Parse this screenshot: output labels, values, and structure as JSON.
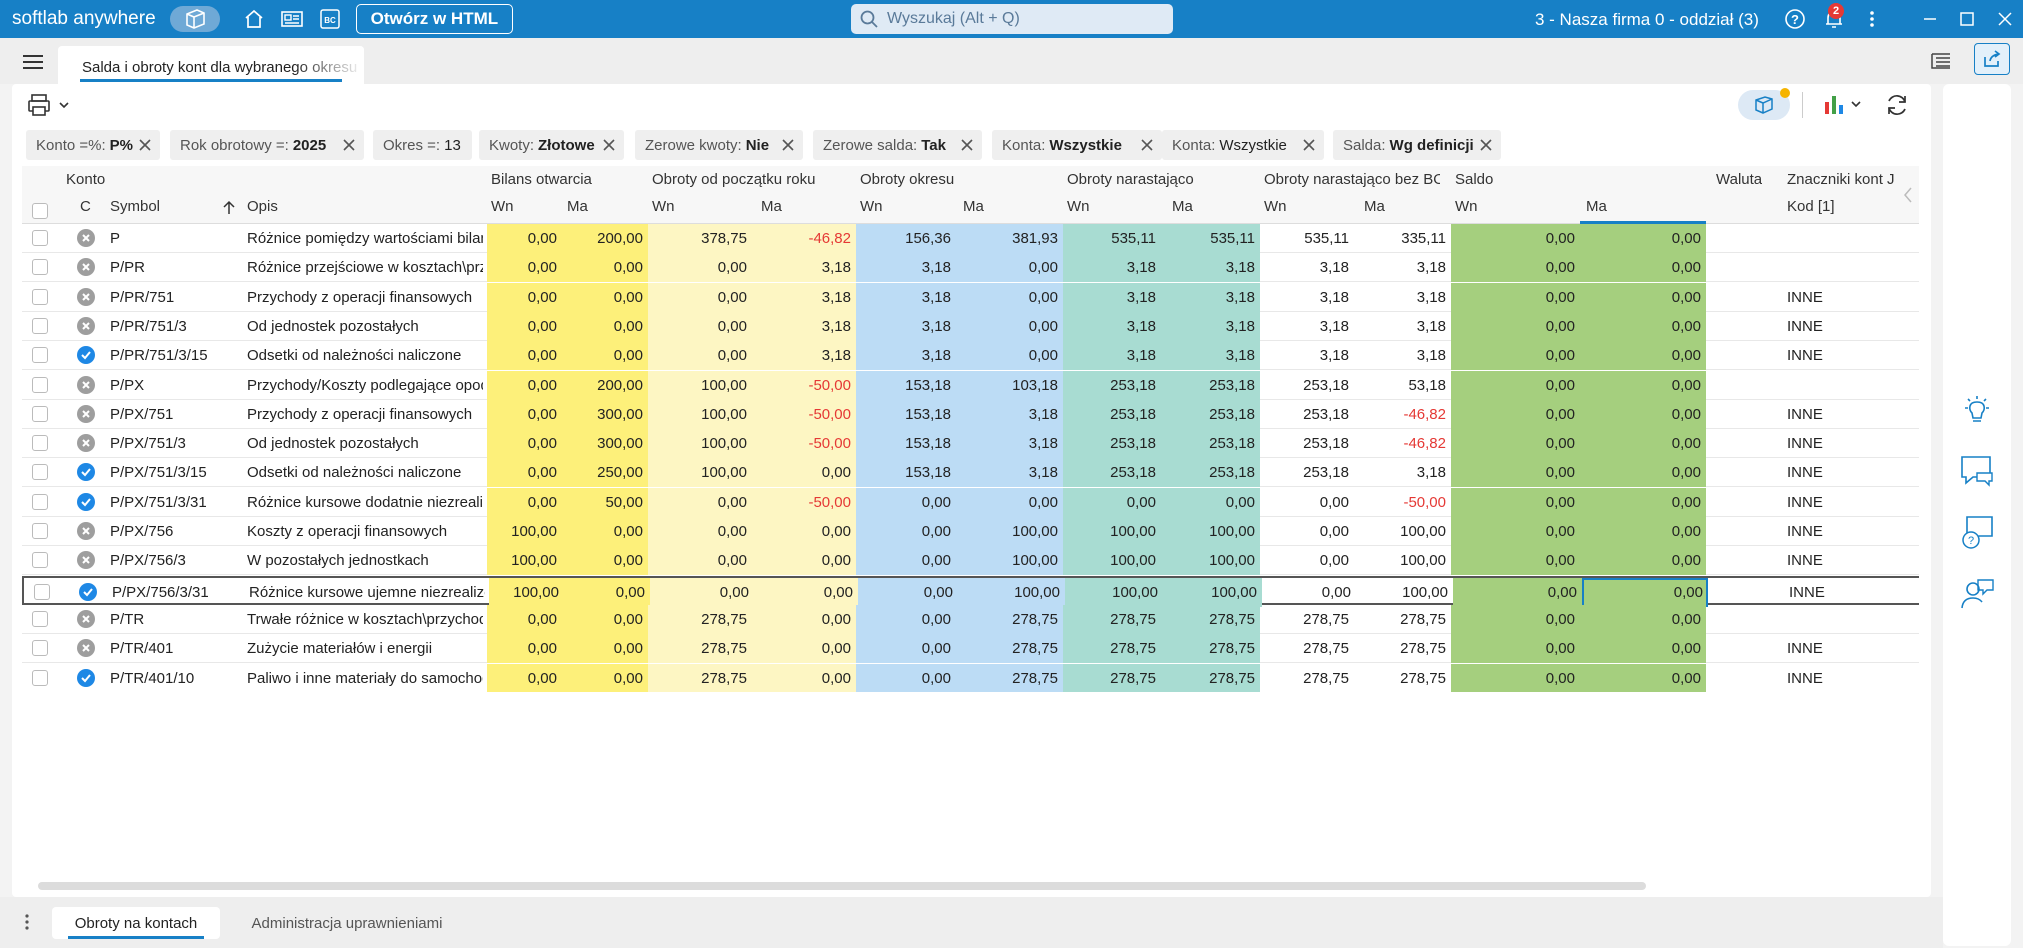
{
  "app": {
    "brand": "softlab anywhere",
    "open_html_label": "Otwórz w HTML",
    "search_placeholder": "Wyszukaj (Alt + Q)",
    "firm": "3 - Nasza firma 0 - oddział (3)",
    "notification_count": "2"
  },
  "document_tab": {
    "label": "Salda i obroty kont dla wybranego okresu"
  },
  "filters": [
    {
      "label": "Konto =%:",
      "value": "P%"
    },
    {
      "label": "Rok obrotowy =:",
      "value": "2025"
    },
    {
      "label": "Okres =:",
      "value": "13"
    },
    {
      "label": "Kwoty:",
      "value": "Złotowe"
    },
    {
      "label": "Zerowe kwoty:",
      "value": "Nie"
    },
    {
      "label": "Zerowe salda:",
      "value": "Tak"
    },
    {
      "label": "Konta:",
      "value": "Wszystkie"
    },
    {
      "label": "Konta:",
      "value": "Wszystkie"
    },
    {
      "label": "Salda:",
      "value": "Wg definicji"
    }
  ],
  "grid": {
    "group_headers": {
      "konto": "Konto",
      "bilans": "Bilans otwarcia",
      "obroty_pocz": "Obroty od początku roku",
      "obroty_okresu": "Obroty okresu",
      "narast": "Obroty narastająco",
      "narast_bo": "Obroty narastająco bez BO",
      "saldo": "Saldo",
      "waluta": "Waluta",
      "znaczniki": "Znaczniki kont J"
    },
    "sub_headers": {
      "c": "C",
      "symbol": "Symbol",
      "opis": "Opis",
      "wn": "Wn",
      "ma": "Ma",
      "kod": "Kod [1]"
    },
    "rows": [
      {
        "status": "x",
        "symbol": "P",
        "opis": "Różnice pomiędzy wartościami bilansowymi",
        "bo_wn": "0,00",
        "bo_ma": "200,00",
        "op_wn": "378,75",
        "op_ma": "-46,82",
        "ok_wn": "156,36",
        "ok_ma": "381,93",
        "n_wn": "535,11",
        "n_ma": "535,11",
        "nb_wn": "535,11",
        "nb_ma": "335,11",
        "s_wn": "0,00",
        "s_ma": "0,00",
        "kod": ""
      },
      {
        "status": "x",
        "symbol": "P/PR",
        "opis": "Różnice przejściowe  w kosztach\\przychodach",
        "bo_wn": "0,00",
        "bo_ma": "0,00",
        "op_wn": "0,00",
        "op_ma": "3,18",
        "ok_wn": "3,18",
        "ok_ma": "0,00",
        "n_wn": "3,18",
        "n_ma": "3,18",
        "nb_wn": "3,18",
        "nb_ma": "3,18",
        "s_wn": "0,00",
        "s_ma": "0,00",
        "kod": ""
      },
      {
        "status": "x",
        "symbol": "P/PR/751",
        "opis": "Przychody z operacji finansowych",
        "bo_wn": "0,00",
        "bo_ma": "0,00",
        "op_wn": "0,00",
        "op_ma": "3,18",
        "ok_wn": "3,18",
        "ok_ma": "0,00",
        "n_wn": "3,18",
        "n_ma": "3,18",
        "nb_wn": "3,18",
        "nb_ma": "3,18",
        "s_wn": "0,00",
        "s_ma": "0,00",
        "kod": "INNE"
      },
      {
        "status": "x",
        "symbol": "P/PR/751/3",
        "opis": "Od jednostek pozostałych",
        "bo_wn": "0,00",
        "bo_ma": "0,00",
        "op_wn": "0,00",
        "op_ma": "3,18",
        "ok_wn": "3,18",
        "ok_ma": "0,00",
        "n_wn": "3,18",
        "n_ma": "3,18",
        "nb_wn": "3,18",
        "nb_ma": "3,18",
        "s_wn": "0,00",
        "s_ma": "0,00",
        "kod": "INNE"
      },
      {
        "status": "check",
        "symbol": "P/PR/751/3/15",
        "opis": "Odsetki od należności naliczone",
        "bo_wn": "0,00",
        "bo_ma": "0,00",
        "op_wn": "0,00",
        "op_ma": "3,18",
        "ok_wn": "3,18",
        "ok_ma": "0,00",
        "n_wn": "3,18",
        "n_ma": "3,18",
        "nb_wn": "3,18",
        "nb_ma": "3,18",
        "s_wn": "0,00",
        "s_ma": "0,00",
        "kod": "INNE"
      },
      {
        "status": "x",
        "symbol": "P/PX",
        "opis": "Przychody/Koszty podlegające opodatkowaniu",
        "bo_wn": "0,00",
        "bo_ma": "200,00",
        "op_wn": "100,00",
        "op_ma": "-50,00",
        "ok_wn": "153,18",
        "ok_ma": "103,18",
        "n_wn": "253,18",
        "n_ma": "253,18",
        "nb_wn": "253,18",
        "nb_ma": "53,18",
        "s_wn": "0,00",
        "s_ma": "0,00",
        "kod": ""
      },
      {
        "status": "x",
        "symbol": "P/PX/751",
        "opis": "Przychody z operacji finansowych",
        "bo_wn": "0,00",
        "bo_ma": "300,00",
        "op_wn": "100,00",
        "op_ma": "-50,00",
        "ok_wn": "153,18",
        "ok_ma": "3,18",
        "n_wn": "253,18",
        "n_ma": "253,18",
        "nb_wn": "253,18",
        "nb_ma": "-46,82",
        "s_wn": "0,00",
        "s_ma": "0,00",
        "kod": "INNE"
      },
      {
        "status": "x",
        "symbol": "P/PX/751/3",
        "opis": "Od jednostek pozostałych",
        "bo_wn": "0,00",
        "bo_ma": "300,00",
        "op_wn": "100,00",
        "op_ma": "-50,00",
        "ok_wn": "153,18",
        "ok_ma": "3,18",
        "n_wn": "253,18",
        "n_ma": "253,18",
        "nb_wn": "253,18",
        "nb_ma": "-46,82",
        "s_wn": "0,00",
        "s_ma": "0,00",
        "kod": "INNE"
      },
      {
        "status": "check",
        "symbol": "P/PX/751/3/15",
        "opis": "Odsetki od należności naliczone",
        "bo_wn": "0,00",
        "bo_ma": "250,00",
        "op_wn": "100,00",
        "op_ma": "0,00",
        "ok_wn": "153,18",
        "ok_ma": "3,18",
        "n_wn": "253,18",
        "n_ma": "253,18",
        "nb_wn": "253,18",
        "nb_ma": "3,18",
        "s_wn": "0,00",
        "s_ma": "0,00",
        "kod": "INNE"
      },
      {
        "status": "check",
        "symbol": "P/PX/751/3/31",
        "opis": "Różnice kursowe dodatnie niezrealizowane",
        "bo_wn": "0,00",
        "bo_ma": "50,00",
        "op_wn": "0,00",
        "op_ma": "-50,00",
        "ok_wn": "0,00",
        "ok_ma": "0,00",
        "n_wn": "0,00",
        "n_ma": "0,00",
        "nb_wn": "0,00",
        "nb_ma": "-50,00",
        "s_wn": "0,00",
        "s_ma": "0,00",
        "kod": "INNE"
      },
      {
        "status": "x",
        "symbol": "P/PX/756",
        "opis": "Koszty z operacji finansowych",
        "bo_wn": "100,00",
        "bo_ma": "0,00",
        "op_wn": "0,00",
        "op_ma": "0,00",
        "ok_wn": "0,00",
        "ok_ma": "100,00",
        "n_wn": "100,00",
        "n_ma": "100,00",
        "nb_wn": "0,00",
        "nb_ma": "100,00",
        "s_wn": "0,00",
        "s_ma": "0,00",
        "kod": "INNE"
      },
      {
        "status": "x",
        "symbol": "P/PX/756/3",
        "opis": "W pozostałych jednostkach",
        "bo_wn": "100,00",
        "bo_ma": "0,00",
        "op_wn": "0,00",
        "op_ma": "0,00",
        "ok_wn": "0,00",
        "ok_ma": "100,00",
        "n_wn": "100,00",
        "n_ma": "100,00",
        "nb_wn": "0,00",
        "nb_ma": "100,00",
        "s_wn": "0,00",
        "s_ma": "0,00",
        "kod": "INNE"
      },
      {
        "status": "check",
        "symbol": "P/PX/756/3/31",
        "opis": "Różnice kursowe ujemne niezrealizowane",
        "bo_wn": "100,00",
        "bo_ma": "0,00",
        "op_wn": "0,00",
        "op_ma": "0,00",
        "ok_wn": "0,00",
        "ok_ma": "100,00",
        "n_wn": "100,00",
        "n_ma": "100,00",
        "nb_wn": "0,00",
        "nb_ma": "100,00",
        "s_wn": "0,00",
        "s_ma": "0,00",
        "kod": "INNE",
        "selected": true
      },
      {
        "status": "x",
        "symbol": "P/TR",
        "opis": "Trwałe różnice w kosztach\\przychodach",
        "bo_wn": "0,00",
        "bo_ma": "0,00",
        "op_wn": "278,75",
        "op_ma": "0,00",
        "ok_wn": "0,00",
        "ok_ma": "278,75",
        "n_wn": "278,75",
        "n_ma": "278,75",
        "nb_wn": "278,75",
        "nb_ma": "278,75",
        "s_wn": "0,00",
        "s_ma": "0,00",
        "kod": ""
      },
      {
        "status": "x",
        "symbol": "P/TR/401",
        "opis": "Zużycie materiałów i energii",
        "bo_wn": "0,00",
        "bo_ma": "0,00",
        "op_wn": "278,75",
        "op_ma": "0,00",
        "ok_wn": "0,00",
        "ok_ma": "278,75",
        "n_wn": "278,75",
        "n_ma": "278,75",
        "nb_wn": "278,75",
        "nb_ma": "278,75",
        "s_wn": "0,00",
        "s_ma": "0,00",
        "kod": "INNE"
      },
      {
        "status": "check",
        "symbol": "P/TR/401/10",
        "opis": "Paliwo i inne materiały do samochodów",
        "bo_wn": "0,00",
        "bo_ma": "0,00",
        "op_wn": "278,75",
        "op_ma": "0,00",
        "ok_wn": "0,00",
        "ok_ma": "278,75",
        "n_wn": "278,75",
        "n_ma": "278,75",
        "nb_wn": "278,75",
        "nb_ma": "278,75",
        "s_wn": "0,00",
        "s_ma": "0,00",
        "kod": "INNE"
      }
    ]
  },
  "bottom_tabs": [
    {
      "label": "Obroty na kontach"
    },
    {
      "label": "Administracja uprawnieniami"
    }
  ],
  "colors": {
    "accent": "#1780c6",
    "bilans": "#fdf07a",
    "obroty_pocz": "#fdf6c3",
    "obroty_okresu": "#bcdcf5",
    "narast": "#a8dcd2",
    "saldo": "#a5cf7e",
    "negative": "#e53935",
    "status_x": "#9e9e9e",
    "status_check": "#1e88e5"
  }
}
